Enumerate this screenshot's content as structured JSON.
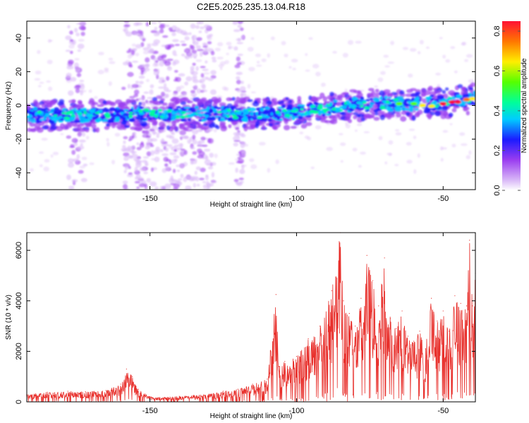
{
  "figure": {
    "title": "C2E5.2025.235.13.04.R18"
  },
  "colors": {
    "snr_line": "#e8302c",
    "frame": "#000000",
    "colormap": [
      "#ffffff",
      "#d9b8f7",
      "#9a3df0",
      "#1b1bff",
      "#00ccff",
      "#00ff99",
      "#55ff00",
      "#ffee00",
      "#ff7700",
      "#ff1133"
    ]
  },
  "chart_data": [
    {
      "type": "heatmap",
      "title": "",
      "xlabel": "Height of straight line (km)",
      "ylabel": "Frequency (Hz)",
      "xlim": [
        -192,
        -39
      ],
      "ylim": [
        -50,
        50
      ],
      "x_ticks": [
        -150,
        -100,
        -50
      ],
      "x_tick_labels": [
        "-150",
        "-100",
        "-50"
      ],
      "y_ticks": [
        -40,
        -20,
        0,
        20,
        40
      ],
      "y_tick_labels": [
        "-40",
        "-20",
        "0",
        "20",
        "40"
      ],
      "colorbar": {
        "label": "Normalized spectral amplitude",
        "range": [
          0,
          0.85
        ],
        "ticks": [
          0.0,
          0.2,
          0.4,
          0.6,
          0.8
        ],
        "tick_labels": [
          "0.0",
          "0.2",
          "0.4",
          "0.6",
          "0.8"
        ]
      },
      "ridge": {
        "description_free": true,
        "points": [
          [
            -192,
            -6
          ],
          [
            -160,
            -6
          ],
          [
            -150,
            -5
          ],
          [
            -130,
            -5
          ],
          [
            -110,
            -5
          ],
          [
            -100,
            -4
          ],
          [
            -90,
            -2
          ],
          [
            -80,
            0
          ],
          [
            -70,
            1
          ],
          [
            -60,
            1
          ],
          [
            -50,
            2
          ],
          [
            -40,
            4
          ]
        ]
      },
      "noise_bands": [
        [
          -159,
          -128
        ],
        [
          -178,
          -172
        ],
        [
          -121,
          -118
        ]
      ]
    },
    {
      "type": "line",
      "title": "",
      "xlabel": "Height of straight line (km)",
      "ylabel": "SNR (10 * v/v)",
      "xlim": [
        -192,
        -39
      ],
      "ylim": [
        0,
        6700
      ],
      "x_ticks": [
        -150,
        -100,
        -50
      ],
      "x_tick_labels": [
        "-150",
        "-100",
        "-50"
      ],
      "y_ticks": [
        0,
        2000,
        4000,
        6000
      ],
      "y_tick_labels": [
        "0",
        "2000",
        "4000",
        "6000"
      ],
      "series": [
        {
          "name": "SNR",
          "x": [
            -192,
            -185,
            -178,
            -172,
            -165,
            -160,
            -158,
            -156,
            -154,
            -150,
            -145,
            -140,
            -135,
            -130,
            -125,
            -120,
            -115,
            -110,
            -107,
            -106,
            -104,
            -100,
            -96,
            -92,
            -88,
            -85,
            -84,
            -82,
            -80,
            -78,
            -76,
            -74,
            -72,
            -70,
            -68,
            -66,
            -64,
            -62,
            -60,
            -58,
            -56,
            -54,
            -52,
            -50,
            -48,
            -46,
            -44,
            -42,
            -41,
            -40,
            -39
          ],
          "y": [
            300,
            380,
            420,
            400,
            450,
            700,
            1300,
            1000,
            500,
            200,
            180,
            220,
            260,
            300,
            420,
            500,
            700,
            900,
            4250,
            1400,
            1600,
            1800,
            2500,
            3000,
            4400,
            6700,
            4000,
            3500,
            3000,
            4100,
            5800,
            4800,
            3800,
            5700,
            3300,
            2900,
            3600,
            2600,
            2400,
            2800,
            2100,
            4100,
            3200,
            3600,
            2800,
            4200,
            3900,
            3800,
            6400,
            3800,
            5100
          ]
        }
      ]
    }
  ]
}
